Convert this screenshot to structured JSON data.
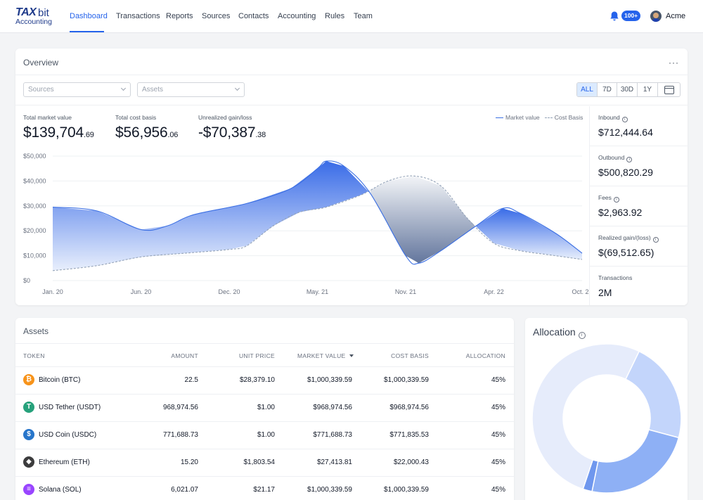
{
  "nav": {
    "logo_tax": "TAX",
    "logo_bit": "bit",
    "logo_sub": "Accounting",
    "items": [
      "Dashboard",
      "Transactions",
      "Reports",
      "Sources",
      "Contacts",
      "Accounting",
      "Rules",
      "Team"
    ],
    "active": "Dashboard",
    "notification_count": "100+",
    "user_name": "Acme"
  },
  "overview": {
    "title": "Overview",
    "more": "···",
    "sources_placeholder": "Sources",
    "assets_placeholder": "Assets",
    "ranges": [
      "ALL",
      "7D",
      "30D",
      "1Y"
    ],
    "active_range": "ALL",
    "stats": [
      {
        "label": "Total market value",
        "main": "$139,704",
        "cents": ".69"
      },
      {
        "label": "Total cost basis",
        "main": "$56,956",
        "cents": ".06"
      },
      {
        "label": "Unrealized gain/loss",
        "main": "-$70,387",
        "cents": ".38"
      }
    ],
    "legend": [
      "Market value",
      "Cost Basis"
    ],
    "side": [
      {
        "label": "Inbound",
        "value": "$712,444.64",
        "info": true
      },
      {
        "label": "Outbound",
        "value": "$500,820.29",
        "info": true
      },
      {
        "label": "Fees",
        "value": "$2,963.92",
        "info": true
      },
      {
        "label": "Realized gain/(loss)",
        "value": "$(69,512.65)",
        "info": true
      },
      {
        "label": "Transactions",
        "value": "2M",
        "info": false
      }
    ]
  },
  "chart_data": {
    "type": "area",
    "x": [
      "Jan. 20",
      "Jun. 20",
      "Dec. 20",
      "May. 21",
      "Nov. 21",
      "Apr. 22",
      "Oct. 22"
    ],
    "yticks": [
      "$0",
      "$10,000",
      "$20,000",
      "$30,000",
      "$40,000",
      "$50,000"
    ],
    "ylim": [
      0,
      50000
    ],
    "grid": true,
    "legend_position": "top-right",
    "series": [
      {
        "name": "Market value",
        "color": "#3b6fe3",
        "points": [
          [
            0,
            29500
          ],
          [
            0.5,
            28000
          ],
          [
            1.0,
            20500
          ],
          [
            1.3,
            22000
          ],
          [
            1.6,
            26500
          ],
          [
            2.2,
            31000
          ],
          [
            2.7,
            37000
          ],
          [
            3.0,
            45000
          ],
          [
            3.1,
            48000
          ],
          [
            3.3,
            46000
          ],
          [
            3.6,
            35000
          ],
          [
            4.0,
            10000
          ],
          [
            4.15,
            7000
          ],
          [
            4.4,
            12000
          ],
          [
            4.8,
            22000
          ],
          [
            5.1,
            29000
          ],
          [
            5.3,
            27000
          ],
          [
            5.7,
            19000
          ],
          [
            6.0,
            11000
          ]
        ]
      },
      {
        "name": "Cost Basis",
        "color": "#94a3b8",
        "dashed": true,
        "points": [
          [
            0,
            4000
          ],
          [
            0.5,
            6000
          ],
          [
            1.0,
            9500
          ],
          [
            1.5,
            11000
          ],
          [
            2.0,
            12500
          ],
          [
            2.2,
            14000
          ],
          [
            2.5,
            22000
          ],
          [
            2.8,
            27500
          ],
          [
            3.1,
            29500
          ],
          [
            3.5,
            34500
          ],
          [
            3.8,
            40000
          ],
          [
            4.1,
            42000
          ],
          [
            4.4,
            38000
          ],
          [
            4.7,
            25000
          ],
          [
            5.0,
            15000
          ],
          [
            5.3,
            12000
          ],
          [
            5.7,
            10000
          ],
          [
            6.0,
            8500
          ]
        ]
      }
    ]
  },
  "assets": {
    "title": "Assets",
    "headers": [
      "TOKEN",
      "AMOUNT",
      "UNIT PRICE",
      "MARKET VALUE",
      "COST BASIS",
      "ALLOCATION"
    ],
    "rows": [
      {
        "token": "Bitcoin (BTC)",
        "amount": "22.5",
        "unit_price": "$28,379.10",
        "market_value": "$1,000,339.59",
        "cost_basis": "$1,000,339.59",
        "allocation": "45%",
        "icon": "bitcoin-icon",
        "color": "#f7931a"
      },
      {
        "token": "USD Tether (USDT)",
        "amount": "968,974.56",
        "unit_price": "$1.00",
        "market_value": "$968,974.56",
        "cost_basis": "$968,974.56",
        "allocation": "45%",
        "icon": "tether-icon",
        "color": "#26a17b"
      },
      {
        "token": "USD Coin (USDC)",
        "amount": "771,688.73",
        "unit_price": "$1.00",
        "market_value": "$771,688.73",
        "cost_basis": "$771,835.53",
        "allocation": "45%",
        "icon": "usdc-icon",
        "color": "#2775ca"
      },
      {
        "token": "Ethereum (ETH)",
        "amount": "15.20",
        "unit_price": "$1,803.54",
        "market_value": "$27,413.81",
        "cost_basis": "$22,000.43",
        "allocation": "45%",
        "icon": "ethereum-icon",
        "color": "#3c3c3d"
      },
      {
        "token": "Solana (SOL)",
        "amount": "6,021.07",
        "unit_price": "$21.17",
        "market_value": "$1,000,339.59",
        "cost_basis": "$1,000,339.59",
        "allocation": "45%",
        "icon": "solana-icon",
        "color": "#9945ff"
      }
    ]
  },
  "allocation": {
    "title": "Allocation",
    "segments": [
      {
        "fraction": 0.22,
        "color": "#c3d5fb"
      },
      {
        "fraction": 0.24,
        "color": "#8eb0f5"
      },
      {
        "fraction": 0.02,
        "color": "#6f97ee"
      },
      {
        "fraction": 0.52,
        "color": "#e6ecfb"
      }
    ]
  }
}
